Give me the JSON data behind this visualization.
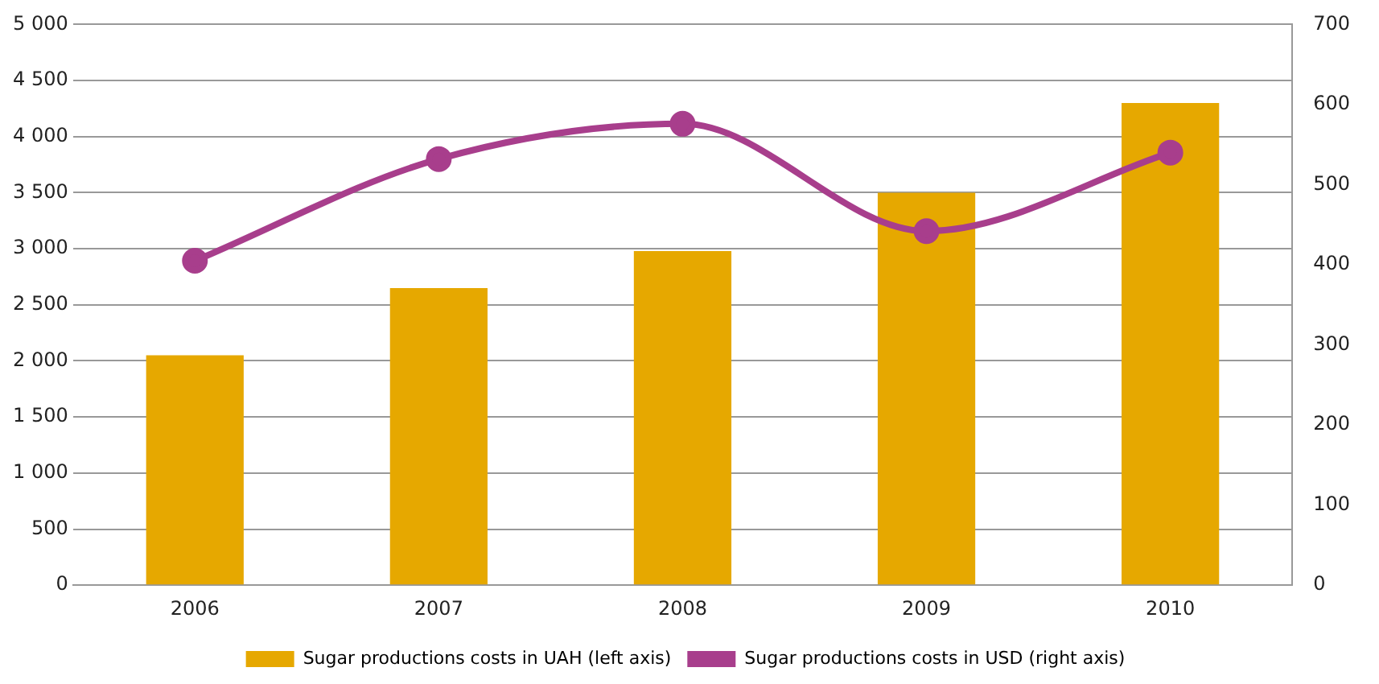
{
  "chart_data": {
    "type": "bar",
    "categories": [
      "2006",
      "2007",
      "2008",
      "2009",
      "2010"
    ],
    "series": [
      {
        "name": "Sugar productions costs in UAH (left axis)",
        "color": "#e6a800",
        "values": [
          2050,
          2650,
          2980,
          3500,
          4300
        ]
      },
      {
        "name": "Sugar productions costs in USD (right axis)",
        "type": "line",
        "axis": "y2",
        "color": "#a83e8c",
        "values": [
          405,
          532,
          576,
          442,
          540
        ]
      }
    ],
    "ylim": [
      0,
      5000
    ],
    "yticks": [
      0,
      {
        "value": 500,
        "label": "500"
      },
      {
        "value": 1000,
        "label": "1 000"
      },
      {
        "value": 1500,
        "label": "1 500"
      },
      {
        "value": 2000,
        "label": "2 000"
      },
      {
        "value": 2500,
        "label": "2 500"
      },
      {
        "value": 3000,
        "label": "3 000"
      },
      {
        "value": 3500,
        "label": "3 500"
      },
      {
        "value": 4000,
        "label": "4 000"
      },
      {
        "value": 4500,
        "label": "4 500"
      },
      {
        "value": 5000,
        "label": "5 000"
      }
    ],
    "y2lim": [
      0,
      700
    ],
    "y2ticks": [
      0,
      100,
      200,
      300,
      400,
      500,
      600,
      700
    ],
    "grid": "y",
    "legend": "bottom",
    "marker": "circle",
    "line_style": "solid"
  }
}
